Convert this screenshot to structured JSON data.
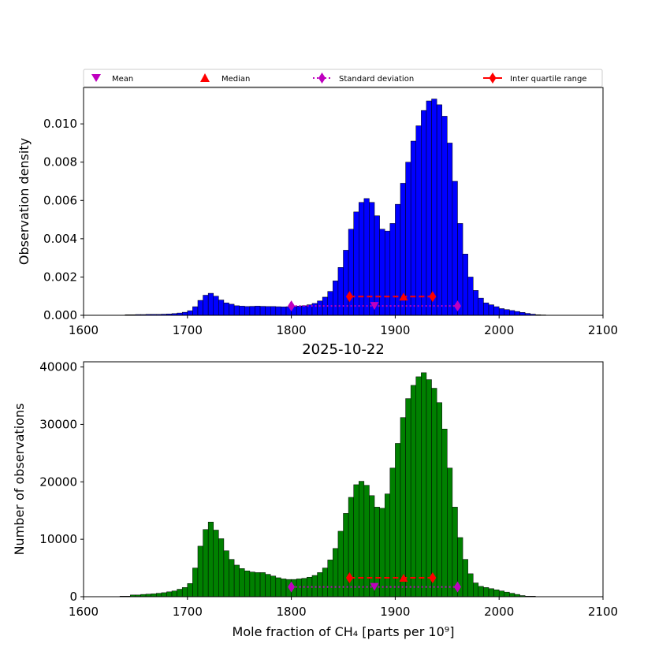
{
  "chart_data": [
    {
      "type": "histogram",
      "bar_color": "#0000ff",
      "title": "",
      "xlabel": "",
      "ylabel": "Observation density",
      "xlim": [
        1600,
        2100
      ],
      "ylim": [
        0,
        0.0119
      ],
      "xticks": [
        "1600",
        "1700",
        "1800",
        "1900",
        "2000",
        "2100"
      ],
      "yticks": [
        "0.000",
        "0.002",
        "0.004",
        "0.006",
        "0.008",
        "0.010"
      ],
      "bin_start": 1640,
      "bin_width": 5,
      "values": [
        3e-05,
        3e-05,
        4e-05,
        4e-05,
        5e-05,
        5e-05,
        5e-05,
        6e-05,
        7e-05,
        9e-05,
        0.00012,
        0.00016,
        0.00024,
        0.00045,
        0.00078,
        0.00105,
        0.00115,
        0.001,
        0.0008,
        0.00065,
        0.00058,
        0.0005,
        0.00048,
        0.00046,
        0.00047,
        0.00048,
        0.00047,
        0.00046,
        0.00046,
        0.00045,
        0.00044,
        0.00045,
        0.00046,
        0.00048,
        0.0005,
        0.00055,
        0.00062,
        0.00075,
        0.00095,
        0.00125,
        0.0018,
        0.0025,
        0.0034,
        0.0045,
        0.0054,
        0.0059,
        0.0061,
        0.0059,
        0.0052,
        0.0045,
        0.0044,
        0.0048,
        0.0058,
        0.0069,
        0.008,
        0.0091,
        0.0099,
        0.0107,
        0.0112,
        0.0113,
        0.011,
        0.0104,
        0.009,
        0.007,
        0.0048,
        0.0032,
        0.002,
        0.0013,
        0.0009,
        0.00065,
        0.00055,
        0.00045,
        0.00035,
        0.0003,
        0.00025,
        0.0002,
        0.00015,
        0.0001,
        6e-05,
        3e-05,
        2e-05
      ],
      "stats": {
        "mean": {
          "x": 1880,
          "y": 0.00049,
          "color": "#bf00bf"
        },
        "median": {
          "x": 1908,
          "y": 0.00098,
          "color": "#ff0000"
        },
        "std_range": {
          "x": [
            1800,
            1960
          ],
          "y": 0.00049,
          "color": "#bf00bf"
        },
        "iqr_range": {
          "x": [
            1856,
            1936
          ],
          "y": 0.00098,
          "color": "#ff0000"
        }
      }
    },
    {
      "type": "histogram",
      "bar_color": "#008000",
      "title": "2025-10-22",
      "xlabel": "Mole fraction of CH₄ [parts per 10⁹]",
      "ylabel": "Number of observations",
      "xlim": [
        1600,
        2100
      ],
      "ylim": [
        0,
        40900
      ],
      "xticks": [
        "1600",
        "1700",
        "1800",
        "1900",
        "2000",
        "2100"
      ],
      "yticks": [
        "0",
        "10000",
        "20000",
        "30000",
        "40000"
      ],
      "bin_start": 1635,
      "bin_width": 5,
      "values": [
        100,
        100,
        300,
        300,
        400,
        450,
        500,
        600,
        700,
        850,
        1000,
        1300,
        1600,
        2300,
        5000,
        8800,
        11700,
        13000,
        11600,
        10100,
        8000,
        6500,
        5500,
        4900,
        4500,
        4300,
        4200,
        4200,
        3900,
        3600,
        3300,
        3100,
        3000,
        3000,
        3100,
        3200,
        3400,
        3700,
        4200,
        5000,
        6400,
        8400,
        11400,
        14500,
        17300,
        19500,
        20100,
        19400,
        17600,
        15600,
        15400,
        17900,
        22400,
        26700,
        31200,
        34500,
        36800,
        38300,
        39000,
        37800,
        36300,
        33800,
        29200,
        22400,
        15600,
        10300,
        6500,
        4000,
        2400,
        1800,
        1600,
        1400,
        1200,
        1000,
        800,
        600,
        400,
        200,
        100,
        100
      ],
      "stats": {
        "mean": {
          "x": 1880,
          "y": 1700,
          "color": "#bf00bf"
        },
        "median": {
          "x": 1908,
          "y": 3300,
          "color": "#ff0000"
        },
        "std_range": {
          "x": [
            1800,
            1960
          ],
          "y": 1700,
          "color": "#bf00bf"
        },
        "iqr_range": {
          "x": [
            1856,
            1936
          ],
          "y": 3300,
          "color": "#ff0000"
        }
      }
    }
  ],
  "legend": {
    "placement": "top, above upper plot",
    "items": [
      {
        "label": "Mean",
        "marker": "triangle-down",
        "color": "#bf00bf"
      },
      {
        "label": "Median",
        "marker": "triangle-up",
        "color": "#ff0000"
      },
      {
        "label": "Standard deviation",
        "marker": "diamond-dotted",
        "color": "#bf00bf"
      },
      {
        "label": "Inter quartile range",
        "marker": "diamond-dashed",
        "color": "#ff0000"
      }
    ]
  }
}
